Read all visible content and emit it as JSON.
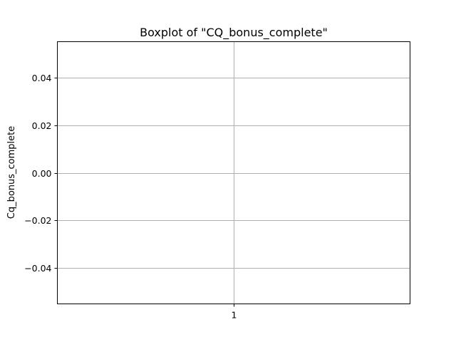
{
  "chart_data": {
    "type": "boxplot",
    "title": "Boxplot of \"CQ_bonus_complete\"",
    "ylabel": "Cq_bonus_complete",
    "xlabel": "",
    "categories": [
      "1"
    ],
    "series": [],
    "ylim": [
      -0.055,
      0.055
    ],
    "yticks": [
      -0.04,
      -0.02,
      0.0,
      0.02,
      0.04
    ],
    "ytick_labels": [
      "−0.04",
      "−0.02",
      "0.00",
      "0.02",
      "0.04"
    ],
    "xticks": [
      1
    ],
    "xtick_labels": [
      "1"
    ],
    "xlim": [
      0.5,
      1.5
    ],
    "grid": true,
    "colors": {
      "grid": "#b0b0b0",
      "axes": "#000000",
      "background": "#ffffff"
    }
  }
}
